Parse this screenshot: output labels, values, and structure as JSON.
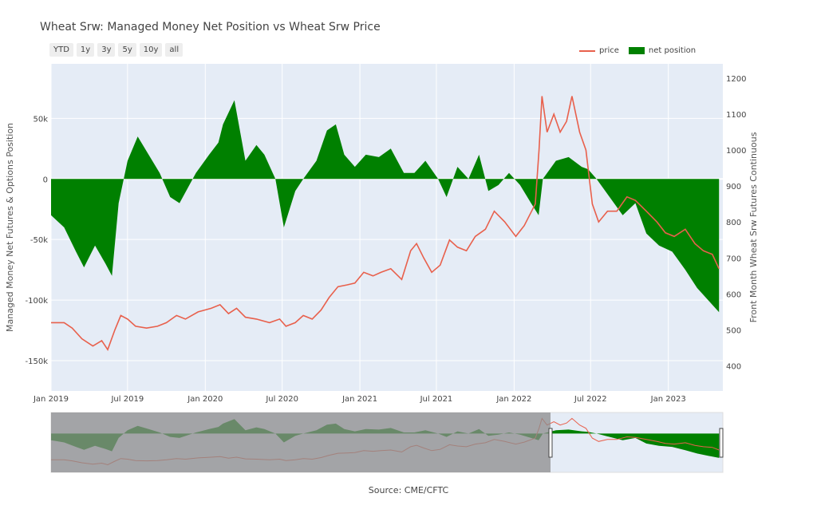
{
  "title": "Wheat Srw: Managed Money Net Position vs Wheat Srw Price",
  "range_buttons": [
    "YTD",
    "1y",
    "3y",
    "5y",
    "10y",
    "all"
  ],
  "source": "Source: CME/CFTC",
  "colors": {
    "price": "#e8604c",
    "net": "#008000",
    "plot_bg": "#e5ecf6",
    "grid": "#ffffff",
    "mask": "#8c8c8c"
  },
  "chart_data": {
    "type": "area",
    "x_ticks": [
      "Jan 2019",
      "Jul 2019",
      "Jan 2020",
      "Jul 2020",
      "Jan 2021",
      "Jul 2021",
      "Jan 2022",
      "Jul 2022",
      "Jan 2023"
    ],
    "y_left": {
      "label": "Managed Money Net Futures & Options Position",
      "range": [
        -175000,
        95000
      ],
      "ticks": [
        50000,
        0,
        -50000,
        -100000,
        -150000
      ],
      "tick_labels": [
        "50k",
        "0",
        "-50k",
        "-100k",
        "-150k"
      ]
    },
    "y_right": {
      "label": "Front Month Wheat Srw Futures Continuous",
      "range": [
        330,
        1240
      ],
      "ticks": [
        1200,
        1100,
        1000,
        900,
        800,
        700,
        600,
        500,
        400
      ],
      "tick_labels": [
        "1200",
        "1100",
        "1000",
        "900",
        "800",
        "700",
        "600",
        "500",
        "400"
      ]
    },
    "legend": "top-right",
    "series": [
      {
        "name": "net position",
        "type": "area",
        "y_axis": "left",
        "x": [
          "2019-01-01",
          "2019-02-01",
          "2019-03-01",
          "2019-03-20",
          "2019-04-15",
          "2019-05-10",
          "2019-05-25",
          "2019-06-10",
          "2019-07-01",
          "2019-07-25",
          "2019-08-20",
          "2019-09-15",
          "2019-10-10",
          "2019-11-01",
          "2019-12-10",
          "2020-01-10",
          "2020-02-01",
          "2020-02-12",
          "2020-03-10",
          "2020-04-05",
          "2020-05-01",
          "2020-05-20",
          "2020-06-15",
          "2020-07-05",
          "2020-08-01",
          "2020-08-20",
          "2020-09-20",
          "2020-10-15",
          "2020-11-05",
          "2020-11-25",
          "2020-12-20",
          "2021-01-15",
          "2021-02-15",
          "2021-03-15",
          "2021-04-15",
          "2021-05-10",
          "2021-06-05",
          "2021-07-05",
          "2021-07-25",
          "2021-08-20",
          "2021-09-15",
          "2021-10-10",
          "2021-11-01",
          "2021-11-25",
          "2021-12-20",
          "2022-01-15",
          "2022-02-10",
          "2022-02-28",
          "2022-03-10",
          "2022-04-10",
          "2022-05-10",
          "2022-06-10",
          "2022-06-25",
          "2022-07-15",
          "2022-08-15",
          "2022-09-15",
          "2022-10-15",
          "2022-11-10",
          "2022-12-10",
          "2023-01-10",
          "2023-02-10",
          "2023-03-10",
          "2023-04-05",
          "2023-05-01"
        ],
        "values": [
          -30000,
          -40000,
          -60000,
          -73000,
          -55000,
          -70000,
          -80000,
          -20000,
          15000,
          35000,
          20000,
          5000,
          -15000,
          -20000,
          5000,
          20000,
          30000,
          45000,
          65000,
          15000,
          28000,
          20000,
          0,
          -40000,
          -10000,
          0,
          15000,
          40000,
          45000,
          20000,
          10000,
          20000,
          18000,
          25000,
          5000,
          5000,
          15000,
          0,
          -15000,
          10000,
          0,
          20000,
          -10000,
          -5000,
          5000,
          -5000,
          -20000,
          -30000,
          0,
          15000,
          18000,
          10000,
          8000,
          0,
          -15000,
          -30000,
          -20000,
          -45000,
          -55000,
          -60000,
          -75000,
          -90000,
          -100000,
          -110000
        ]
      },
      {
        "name": "price",
        "type": "line",
        "y_axis": "right",
        "x": [
          "2019-01-01",
          "2019-02-01",
          "2019-02-20",
          "2019-03-15",
          "2019-04-10",
          "2019-05-01",
          "2019-05-15",
          "2019-06-01",
          "2019-06-15",
          "2019-07-01",
          "2019-07-20",
          "2019-08-15",
          "2019-09-10",
          "2019-10-01",
          "2019-10-25",
          "2019-11-15",
          "2019-12-15",
          "2020-01-15",
          "2020-02-05",
          "2020-02-25",
          "2020-03-15",
          "2020-04-05",
          "2020-05-01",
          "2020-06-01",
          "2020-06-25",
          "2020-07-10",
          "2020-08-01",
          "2020-08-20",
          "2020-09-10",
          "2020-10-01",
          "2020-10-20",
          "2020-11-10",
          "2020-12-01",
          "2020-12-20",
          "2021-01-10",
          "2021-02-01",
          "2021-02-20",
          "2021-03-15",
          "2021-04-10",
          "2021-05-01",
          "2021-05-15",
          "2021-06-01",
          "2021-06-20",
          "2021-07-10",
          "2021-08-01",
          "2021-08-20",
          "2021-09-10",
          "2021-10-01",
          "2021-10-25",
          "2021-11-15",
          "2021-12-10",
          "2022-01-05",
          "2022-01-25",
          "2022-02-20",
          "2022-03-01",
          "2022-03-08",
          "2022-03-20",
          "2022-04-05",
          "2022-04-20",
          "2022-05-05",
          "2022-05-18",
          "2022-06-05",
          "2022-06-20",
          "2022-07-05",
          "2022-07-20",
          "2022-08-10",
          "2022-09-01",
          "2022-09-25",
          "2022-10-15",
          "2022-11-10",
          "2022-12-05",
          "2022-12-25",
          "2023-01-15",
          "2023-02-10",
          "2023-03-05",
          "2023-03-25",
          "2023-04-15",
          "2023-05-01"
        ],
        "values": [
          520,
          520,
          505,
          475,
          455,
          470,
          445,
          500,
          540,
          530,
          510,
          505,
          510,
          520,
          540,
          530,
          550,
          560,
          570,
          545,
          560,
          535,
          530,
          520,
          530,
          510,
          520,
          540,
          530,
          555,
          590,
          620,
          625,
          630,
          660,
          650,
          660,
          670,
          640,
          720,
          740,
          700,
          660,
          680,
          750,
          730,
          720,
          760,
          780,
          830,
          800,
          760,
          790,
          850,
          1000,
          1150,
          1050,
          1100,
          1050,
          1080,
          1150,
          1050,
          1000,
          850,
          800,
          830,
          830,
          870,
          860,
          830,
          800,
          770,
          760,
          780,
          740,
          720,
          710,
          670
        ]
      }
    ]
  }
}
